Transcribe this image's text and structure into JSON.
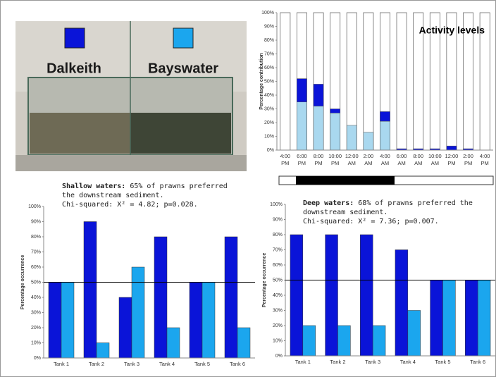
{
  "photo": {
    "labels": [
      "Dalkeith",
      "Bayswater"
    ],
    "colors": [
      "#0a14d8",
      "#1ba6ee"
    ]
  },
  "chart_data": [
    {
      "type": "bar",
      "stacked": true,
      "title": "Activity levels",
      "ylabel": "Percentage contribution",
      "categories": [
        "4:00 PM",
        "6:00 PM",
        "8:00 PM",
        "10:00 PM",
        "12:00 AM",
        "2:00 AM",
        "4:00 AM",
        "6:00 AM",
        "8:00 AM",
        "10:00 AM",
        "12:00 PM",
        "2:00 PM",
        "4:00 PM"
      ],
      "series": [
        {
          "color": "#a9d8ef",
          "values": [
            0,
            35,
            32,
            27,
            18,
            13,
            21,
            0,
            0,
            0,
            0,
            0,
            0
          ]
        },
        {
          "color": "#0a14d8",
          "values": [
            0,
            17,
            16,
            3,
            0,
            0,
            7,
            1,
            1,
            1,
            3,
            1,
            0
          ]
        }
      ],
      "ylim": [
        0,
        100
      ],
      "yticks": [
        {
          "value": 0,
          "label": "0%"
        },
        {
          "value": 10,
          "label": "10%"
        },
        {
          "value": 20,
          "label": "20%"
        },
        {
          "value": 30,
          "label": "30%"
        },
        {
          "value": 40,
          "label": "40%"
        },
        {
          "value": 50,
          "label": "50%"
        },
        {
          "value": 60,
          "label": "60%"
        },
        {
          "value": 70,
          "label": "70%"
        },
        {
          "value": 80,
          "label": "80%"
        },
        {
          "value": 90,
          "label": "90%"
        },
        {
          "value": 100,
          "label": "100%"
        }
      ]
    },
    {
      "type": "bar",
      "stacked": false,
      "title": "Shallow waters:",
      "subtitle": "65% of prawns preferred the downstream sediment.",
      "stat": "Chi-squared: X² = 4.82; p=0.028.",
      "ylabel": "Percentage occurrence",
      "categories": [
        "Tank 1",
        "Tank 2",
        "Tank 3",
        "Tank 4",
        "Tank 5",
        "Tank 6"
      ],
      "series": [
        {
          "color": "#0a14d8",
          "values": [
            50,
            90,
            40,
            80,
            50,
            80
          ]
        },
        {
          "color": "#1ba6ee",
          "values": [
            50,
            10,
            60,
            20,
            50,
            20
          ]
        }
      ],
      "hline": 50,
      "ylim": [
        0,
        100
      ],
      "yticks": [
        {
          "value": 0,
          "label": "0%"
        },
        {
          "value": 10,
          "label": "10%"
        },
        {
          "value": 20,
          "label": "20%"
        },
        {
          "value": 30,
          "label": "30%"
        },
        {
          "value": 40,
          "label": "40%"
        },
        {
          "value": 50,
          "label": "50%"
        },
        {
          "value": 60,
          "label": "60%"
        },
        {
          "value": 70,
          "label": "70%"
        },
        {
          "value": 80,
          "label": "80%"
        },
        {
          "value": 90,
          "label": "90%"
        },
        {
          "value": 100,
          "label": "100%"
        }
      ]
    },
    {
      "type": "bar",
      "stacked": false,
      "title": "Deep waters:",
      "subtitle": "68% of prawns preferred the downstream sediment.",
      "stat": "Chi-squared: X² = 7.36; p=0.007.",
      "ylabel": "Percentage occurrence",
      "categories": [
        "Tank 1",
        "Tank 2",
        "Tank 3",
        "Tank 4",
        "Tank 5",
        "Tank 6"
      ],
      "series": [
        {
          "color": "#0a14d8",
          "values": [
            80,
            80,
            80,
            70,
            50,
            50
          ]
        },
        {
          "color": "#1ba6ee",
          "values": [
            20,
            20,
            20,
            30,
            50,
            50
          ]
        }
      ],
      "hline": 50,
      "ylim": [
        0,
        100
      ],
      "yticks": [
        {
          "value": 0,
          "label": "0%"
        },
        {
          "value": 10,
          "label": "10%"
        },
        {
          "value": 20,
          "label": "20%"
        },
        {
          "value": 30,
          "label": "30%"
        },
        {
          "value": 40,
          "label": "40%"
        },
        {
          "value": 50,
          "label": "50%"
        },
        {
          "value": 60,
          "label": "60%"
        },
        {
          "value": 70,
          "label": "70%"
        },
        {
          "value": 80,
          "label": "80%"
        },
        {
          "value": 90,
          "label": "90%"
        },
        {
          "value": 100,
          "label": "100%"
        }
      ]
    }
  ]
}
